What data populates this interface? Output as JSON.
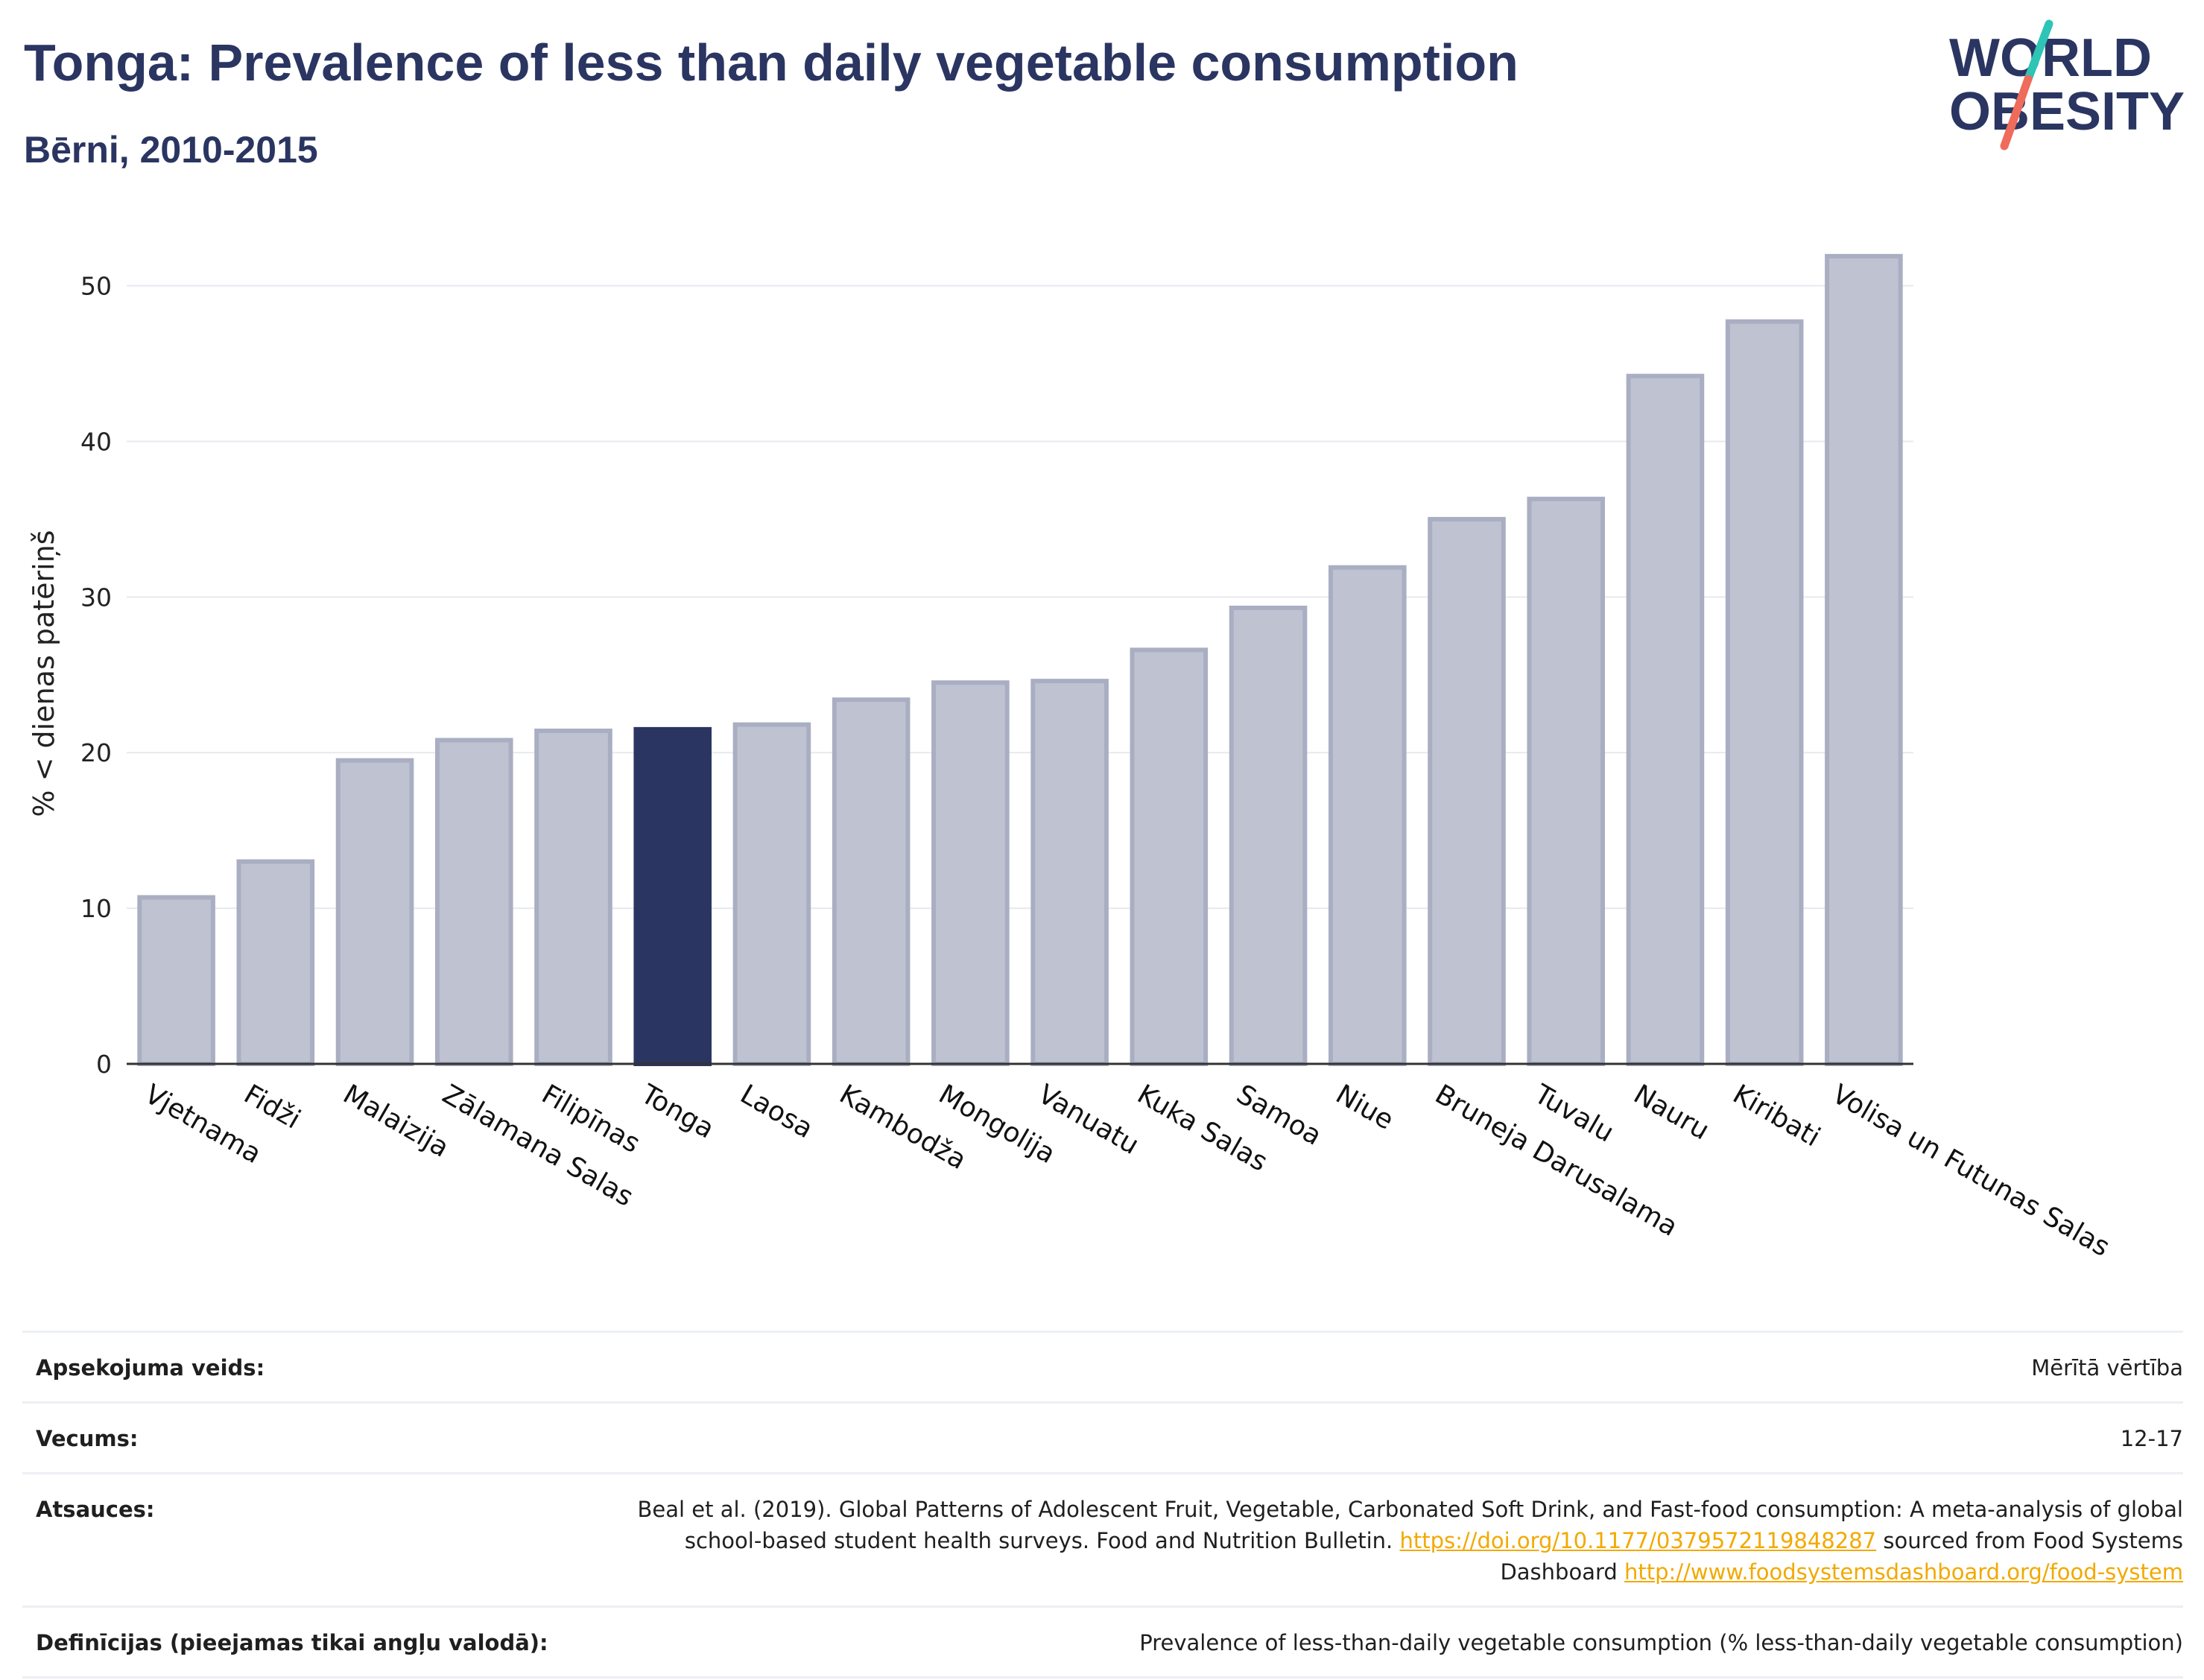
{
  "header": {
    "title": "Tonga: Prevalence of less than daily vegetable consumption",
    "subtitle": "Bērni, 2010-2015"
  },
  "logo": {
    "line1": "WORLD",
    "line2": "OBESITY",
    "colors": {
      "text": "#2a3561",
      "slash_top": "#2ec4b6",
      "slash_bottom": "#ef6b5b"
    }
  },
  "chart_data": {
    "type": "bar",
    "title": "Tonga: Prevalence of less than daily vegetable consumption",
    "subtitle": "Bērni, 2010-2015",
    "xlabel": "",
    "ylabel": "% < dienas patēriņš",
    "ylim": [
      0,
      54
    ],
    "yticks": [
      0,
      10,
      20,
      30,
      40,
      50
    ],
    "grid": true,
    "categories": [
      "Vjetnama",
      "Fidži",
      "Malaizija",
      "Zālamana Salas",
      "Filipīnas",
      "Tonga",
      "Laosa",
      "Kambodža",
      "Mongolija",
      "Vanuatu",
      "Kuka Salas",
      "Samoa",
      "Niue",
      "Bruneja Darusalama",
      "Tuvalu",
      "Nauru",
      "Kiribati",
      "Volisa un Futunas Salas"
    ],
    "values": [
      10.7,
      13.0,
      19.5,
      20.8,
      21.4,
      21.5,
      21.8,
      23.4,
      24.5,
      24.6,
      26.6,
      29.3,
      31.9,
      35.0,
      36.3,
      44.2,
      47.7,
      51.9
    ],
    "highlight": "Tonga",
    "colors": {
      "bar": "#bfc3d1",
      "bar_edge": "#a9aec2",
      "highlight": "#2a3561",
      "grid": "#e7e9ef",
      "axis": "#333333"
    }
  },
  "meta": [
    {
      "label": "Apsekojuma veids:",
      "value": "Mērītā vērtība"
    },
    {
      "label": "Vecums:",
      "value": "12-17"
    },
    {
      "label": "Atsauces:",
      "text1": "Beal et al. (2019). Global Patterns of Adolescent Fruit, Vegetable, Carbonated Soft Drink, and Fast-food consumption: A meta-analysis of global school-based student health surveys. Food and Nutrition Bulletin.",
      "link1": "https://doi.org/10.1177/0379572119848287",
      "text2": "sourced from Food Systems Dashboard",
      "link2": "http://www.foodsystemsdashboard.org/food-system"
    },
    {
      "label": "Definīcijas (pieejamas tikai angļu valodā):",
      "value": "Prevalence of less-than-daily vegetable consumption (% less-than-daily vegetable consumption)"
    }
  ]
}
